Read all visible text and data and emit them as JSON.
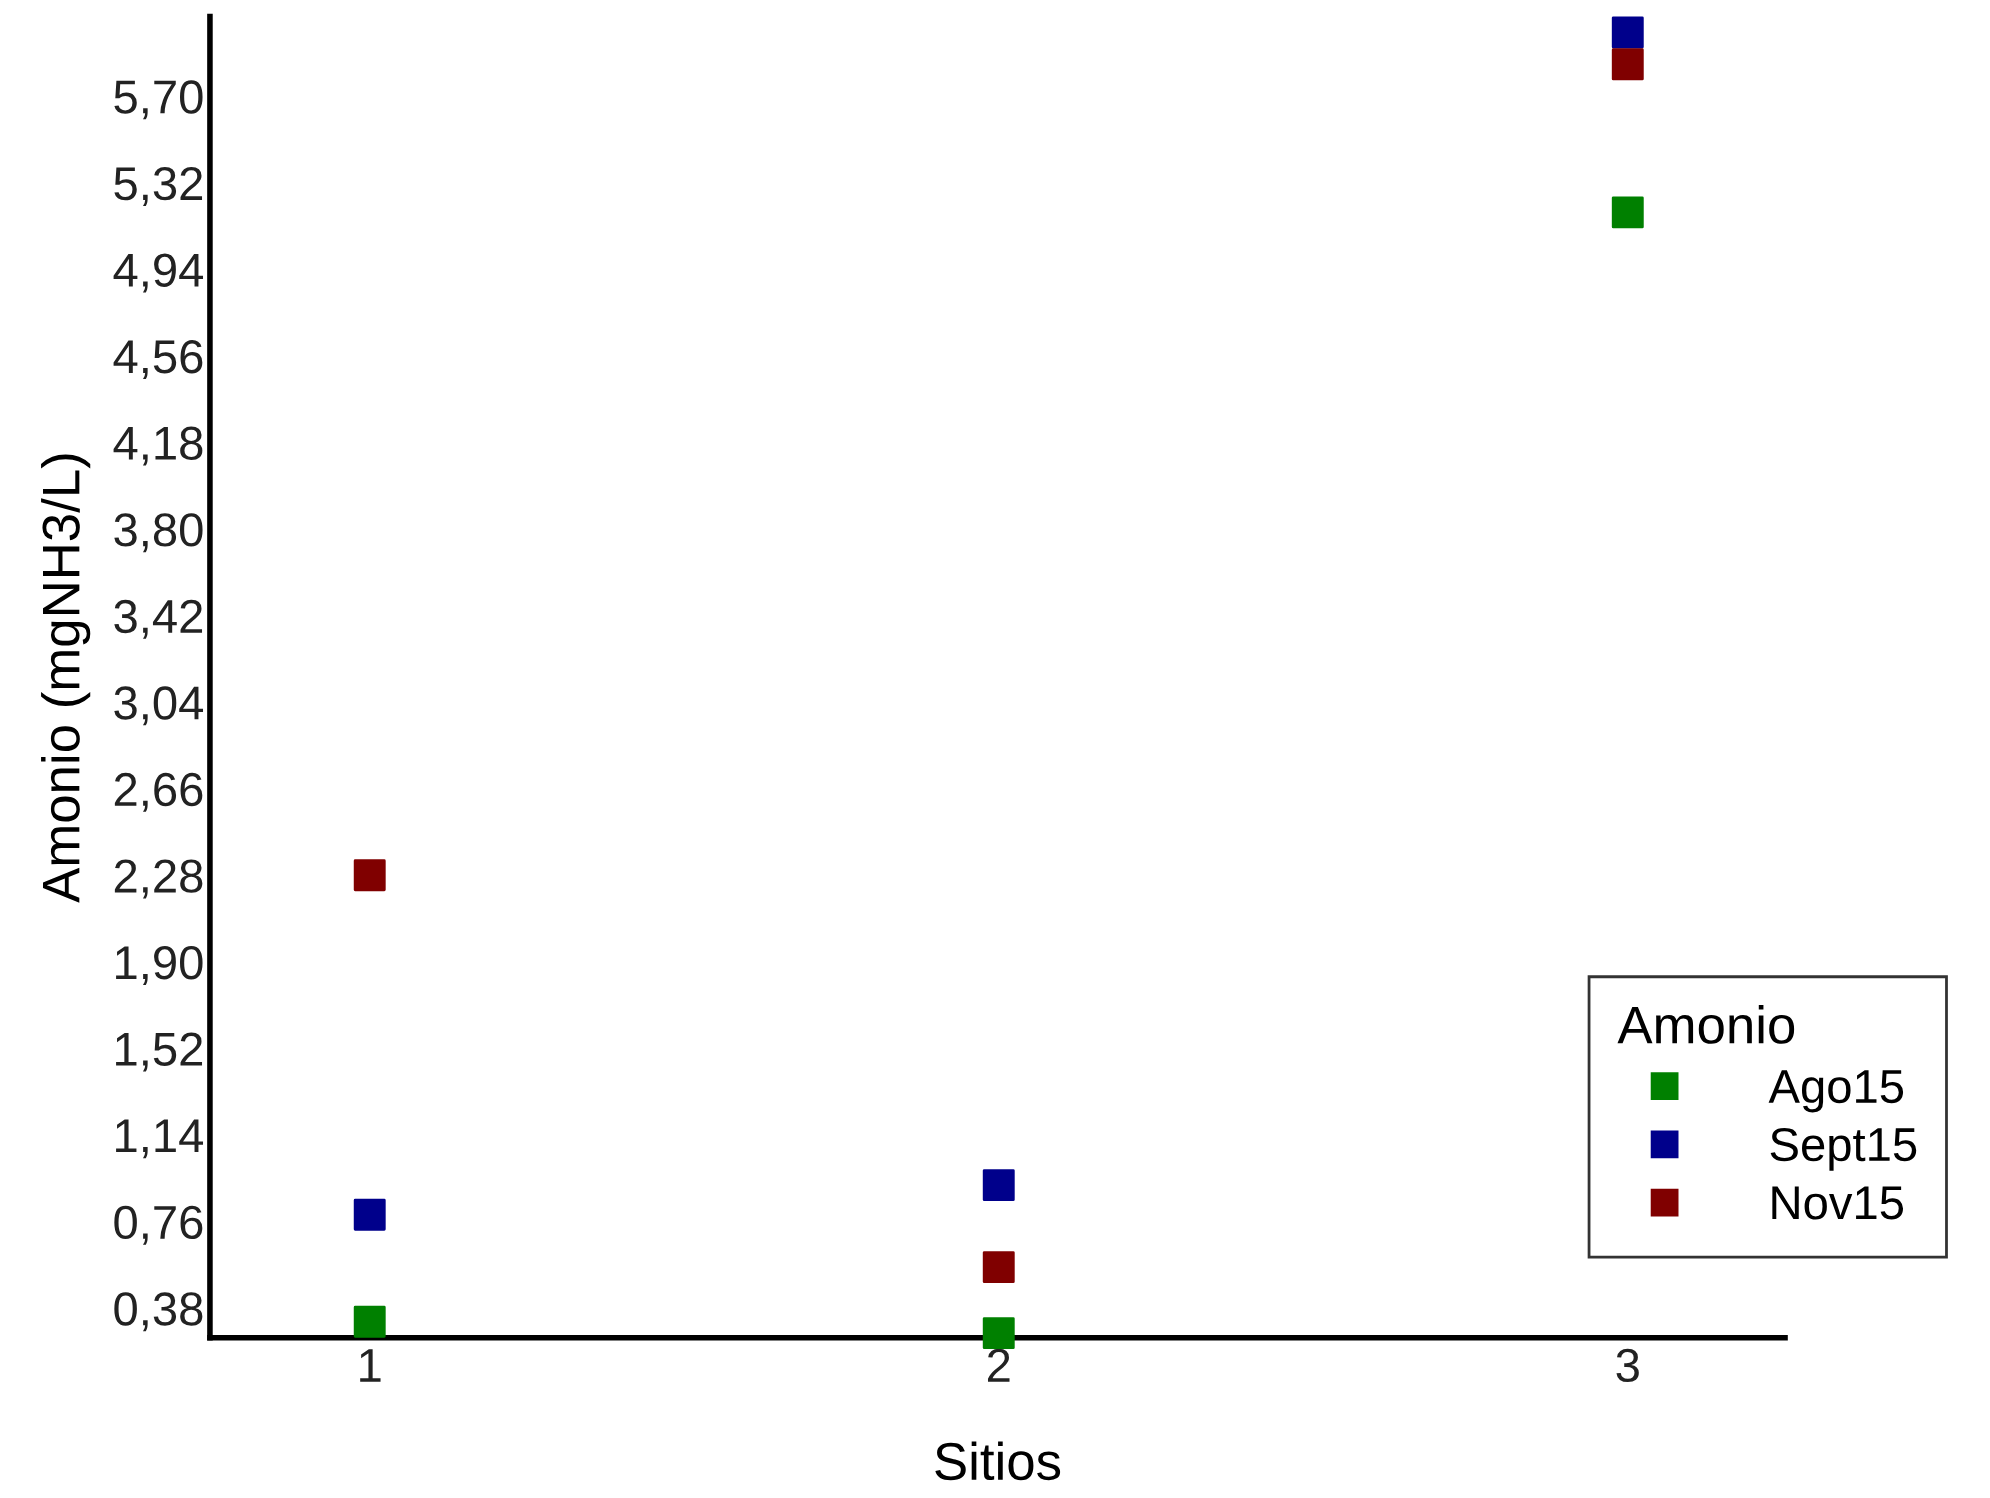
{
  "chart_data": {
    "type": "scatter",
    "xlabel": "Sitios",
    "ylabel": "Amonio (mgNH3/L)",
    "legend_title": "Amonio",
    "categories": [
      "1",
      "2",
      "3"
    ],
    "series": [
      {
        "name": "Ago15",
        "color": "#008000",
        "values": [
          0.32,
          0.27,
          5.19
        ]
      },
      {
        "name": "Sept15",
        "color": "#00008b",
        "values": [
          0.79,
          0.92,
          5.98
        ]
      },
      {
        "name": "Nov15",
        "color": "#800000",
        "values": [
          2.28,
          0.56,
          5.84
        ]
      }
    ],
    "ylim": [
      0.25,
      6.05
    ],
    "yticks": [
      {
        "value": 0.38,
        "label": "0,38"
      },
      {
        "value": 0.76,
        "label": "0,76"
      },
      {
        "value": 1.14,
        "label": "1,14"
      },
      {
        "value": 1.52,
        "label": "1,52"
      },
      {
        "value": 1.9,
        "label": "1,90"
      },
      {
        "value": 2.28,
        "label": "2,28"
      },
      {
        "value": 2.66,
        "label": "2,66"
      },
      {
        "value": 3.04,
        "label": "3,04"
      },
      {
        "value": 3.42,
        "label": "3,42"
      },
      {
        "value": 3.8,
        "label": "3,80"
      },
      {
        "value": 4.18,
        "label": "4,18"
      },
      {
        "value": 4.56,
        "label": "4,56"
      },
      {
        "value": 4.94,
        "label": "4,94"
      },
      {
        "value": 5.32,
        "label": "5,32"
      },
      {
        "value": 5.7,
        "label": "5,70"
      }
    ],
    "marker": "square",
    "legend": "bottom right",
    "grid": false
  }
}
